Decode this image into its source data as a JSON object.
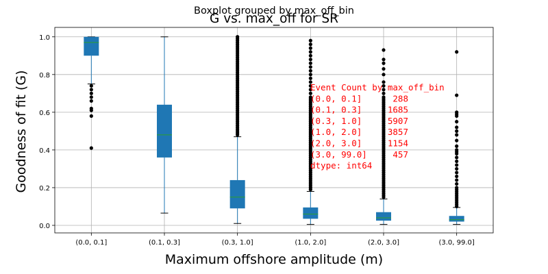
{
  "chart_data": {
    "type": "boxplot",
    "suptitle": "Boxplot grouped by max_off_bin",
    "title": "G vs. max_off for SR",
    "xlabel": "Maximum offshore amplitude (m)",
    "ylabel": "Goodness of fit (G)",
    "ylim": [
      -0.04,
      1.05
    ],
    "yticks": [
      "0.0",
      "0.2",
      "0.4",
      "0.6",
      "0.8",
      "1.0"
    ],
    "grid": true,
    "box_color": "#1f77b4",
    "median_color": "#2ca02c",
    "flier_color": "#000000",
    "categories": [
      "(0.0, 0.1]",
      "(0.1, 0.3]",
      "(0.3, 1.0]",
      "(1.0, 2.0]",
      "(2.0, 3.0]",
      "(3.0, 99.0]"
    ],
    "boxes": [
      {
        "whislo": 0.75,
        "q1": 0.9,
        "med": 0.97,
        "q3": 1.0,
        "whishi": 1.0,
        "fliers": [
          0.74,
          0.72,
          0.7,
          0.68,
          0.66,
          0.62,
          0.61,
          0.58,
          0.41
        ]
      },
      {
        "whislo": 0.065,
        "q1": 0.36,
        "med": 0.48,
        "q3": 0.64,
        "whishi": 1.0,
        "fliers": []
      },
      {
        "whislo": 0.01,
        "q1": 0.09,
        "med": 0.15,
        "q3": 0.24,
        "whishi": 0.47,
        "fliers": [
          0.48,
          0.49,
          0.5,
          0.51,
          0.52,
          0.53,
          0.54,
          0.55,
          0.56,
          0.57,
          0.58,
          0.59,
          0.6,
          0.61,
          0.62,
          0.63,
          0.64,
          0.65,
          0.66,
          0.67,
          0.68,
          0.69,
          0.7,
          0.71,
          0.72,
          0.73,
          0.74,
          0.75,
          0.76,
          0.77,
          0.78,
          0.79,
          0.8,
          0.81,
          0.82,
          0.83,
          0.84,
          0.85,
          0.86,
          0.87,
          0.88,
          0.89,
          0.9,
          0.91,
          0.92,
          0.93,
          0.94,
          0.95,
          0.96,
          0.97,
          0.98,
          0.99,
          1.0
        ]
      },
      {
        "whislo": 0.005,
        "q1": 0.035,
        "med": 0.06,
        "q3": 0.095,
        "whishi": 0.18,
        "fliers": [
          0.19,
          0.2,
          0.21,
          0.22,
          0.23,
          0.24,
          0.25,
          0.26,
          0.27,
          0.28,
          0.29,
          0.3,
          0.31,
          0.32,
          0.33,
          0.34,
          0.35,
          0.36,
          0.37,
          0.38,
          0.39,
          0.4,
          0.41,
          0.42,
          0.43,
          0.44,
          0.45,
          0.46,
          0.47,
          0.48,
          0.49,
          0.5,
          0.51,
          0.52,
          0.53,
          0.54,
          0.55,
          0.56,
          0.57,
          0.58,
          0.59,
          0.6,
          0.61,
          0.62,
          0.63,
          0.64,
          0.65,
          0.66,
          0.67,
          0.68,
          0.7,
          0.72,
          0.74,
          0.76,
          0.78,
          0.8,
          0.82,
          0.84,
          0.86,
          0.88,
          0.9,
          0.92,
          0.94,
          0.96,
          0.98
        ]
      },
      {
        "whislo": 0.005,
        "q1": 0.025,
        "med": 0.04,
        "q3": 0.07,
        "whishi": 0.14,
        "fliers": [
          0.15,
          0.16,
          0.17,
          0.18,
          0.19,
          0.2,
          0.21,
          0.22,
          0.23,
          0.24,
          0.25,
          0.26,
          0.27,
          0.28,
          0.29,
          0.3,
          0.31,
          0.32,
          0.33,
          0.34,
          0.35,
          0.36,
          0.37,
          0.38,
          0.39,
          0.4,
          0.41,
          0.42,
          0.43,
          0.44,
          0.45,
          0.46,
          0.47,
          0.48,
          0.49,
          0.5,
          0.51,
          0.52,
          0.53,
          0.54,
          0.55,
          0.56,
          0.57,
          0.58,
          0.59,
          0.6,
          0.61,
          0.62,
          0.63,
          0.64,
          0.65,
          0.66,
          0.67,
          0.68,
          0.7,
          0.72,
          0.74,
          0.76,
          0.8,
          0.83,
          0.86,
          0.88,
          0.93
        ]
      },
      {
        "whislo": 0.005,
        "q1": 0.02,
        "med": 0.03,
        "q3": 0.05,
        "whishi": 0.095,
        "fliers": [
          0.1,
          0.11,
          0.12,
          0.13,
          0.14,
          0.15,
          0.16,
          0.17,
          0.18,
          0.19,
          0.2,
          0.22,
          0.24,
          0.26,
          0.28,
          0.3,
          0.32,
          0.34,
          0.36,
          0.38,
          0.39,
          0.4,
          0.42,
          0.45,
          0.48,
          0.5,
          0.52,
          0.55,
          0.58,
          0.59,
          0.6,
          0.69,
          0.92
        ]
      }
    ],
    "annotation": {
      "color": "#ff0000",
      "lines": [
        "Event Count by max_off_bin",
        "(0.0, 0.1]      288",
        "(0.1, 0.3]     1685",
        "(0.3, 1.0]     5907",
        "(1.0, 2.0]     3857",
        "(2.0, 3.0]     1154",
        "(3.0, 99.0]     457",
        "dtype: int64"
      ]
    }
  }
}
